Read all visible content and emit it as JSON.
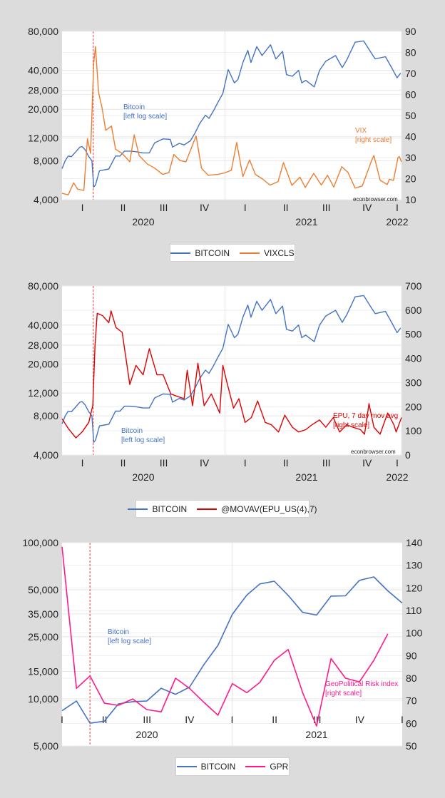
{
  "chart_data": [
    {
      "type": "line",
      "x_type": "date",
      "xlim": [
        "2020-01-01",
        "2022-02-01"
      ],
      "quarter_labels": [
        "I",
        "II",
        "III",
        "IV",
        "I",
        "II",
        "III",
        "IV",
        "I"
      ],
      "year_labels": [
        "2020",
        "2021",
        "2022"
      ],
      "left_axis": {
        "scale": "log",
        "ylim": [
          4000,
          80000
        ],
        "ticks": [
          80000,
          40000,
          28000,
          20000,
          12000,
          8000,
          4000
        ],
        "tick_labels": [
          "80,000",
          "40,000",
          "28,000",
          "20,000",
          "12,000",
          "8,000",
          "4,000"
        ]
      },
      "right_axis": {
        "scale": "linear",
        "ylim": [
          10,
          90
        ],
        "ticks": [
          10,
          20,
          30,
          40,
          50,
          60,
          70,
          80,
          90
        ],
        "tick_labels": [
          "10",
          "20",
          "30",
          "40",
          "50",
          "60",
          "70",
          "80",
          "90"
        ]
      },
      "marker_line_date": "2020-03-11",
      "grid": true,
      "legend_placement": "bottom",
      "annotations": {
        "btc_line1": "Bitcoin",
        "btc_line2": "[left log scale]",
        "other_line1": "VIX",
        "other_line2": "[right scale]",
        "source": "econbrowser.com"
      },
      "series": [
        {
          "name": "BITCOIN",
          "axis": "left",
          "color": "#4472c4",
          "x": [
            "2020-01-01",
            "2020-01-08",
            "2020-01-15",
            "2020-01-22",
            "2020-02-01",
            "2020-02-10",
            "2020-02-15",
            "2020-02-22",
            "2020-03-01",
            "2020-03-08",
            "2020-03-12",
            "2020-03-16",
            "2020-03-25",
            "2020-04-05",
            "2020-04-15",
            "2020-04-30",
            "2020-05-10",
            "2020-05-20",
            "2020-06-01",
            "2020-06-15",
            "2020-07-01",
            "2020-07-15",
            "2020-07-27",
            "2020-08-15",
            "2020-08-31",
            "2020-09-05",
            "2020-09-20",
            "2020-10-01",
            "2020-10-15",
            "2020-10-25",
            "2020-11-05",
            "2020-11-18",
            "2020-11-26",
            "2020-12-05",
            "2020-12-17",
            "2020-12-27",
            "2021-01-08",
            "2021-01-22",
            "2021-01-30",
            "2021-02-10",
            "2021-02-21",
            "2021-02-28",
            "2021-03-13",
            "2021-03-25",
            "2021-04-13",
            "2021-04-25",
            "2021-05-10",
            "2021-05-19",
            "2021-06-01",
            "2021-06-15",
            "2021-06-22",
            "2021-07-01",
            "2021-07-20",
            "2021-08-01",
            "2021-08-15",
            "2021-09-06",
            "2021-09-21",
            "2021-10-01",
            "2021-10-20",
            "2021-11-08",
            "2021-11-26",
            "2021-12-04",
            "2021-12-27",
            "2022-01-10",
            "2022-01-22",
            "2022-01-30"
          ],
          "values": [
            6950,
            8000,
            8700,
            8600,
            9400,
            10200,
            10300,
            9700,
            8600,
            8000,
            5000,
            5200,
            6700,
            6800,
            6900,
            8700,
            8700,
            9500,
            9500,
            9400,
            9200,
            9200,
            11000,
            11800,
            11700,
            10200,
            10900,
            10600,
            11400,
            13000,
            15500,
            18000,
            17000,
            19200,
            23000,
            26500,
            40500,
            32000,
            34000,
            46000,
            57000,
            46000,
            61000,
            52000,
            63000,
            49000,
            56000,
            37000,
            36000,
            40000,
            32000,
            33500,
            29800,
            40000,
            47000,
            52000,
            42000,
            48000,
            66000,
            67500,
            54000,
            49000,
            51000,
            41800,
            35000,
            38000
          ]
        },
        {
          "name": "VIXCLS",
          "axis": "right",
          "color": "#ed7d31",
          "x": [
            "2020-01-01",
            "2020-01-15",
            "2020-01-27",
            "2020-02-05",
            "2020-02-19",
            "2020-02-27",
            "2020-03-05",
            "2020-03-12",
            "2020-03-16",
            "2020-03-23",
            "2020-03-31",
            "2020-04-08",
            "2020-04-21",
            "2020-04-30",
            "2020-05-15",
            "2020-06-01",
            "2020-06-11",
            "2020-06-22",
            "2020-07-10",
            "2020-07-27",
            "2020-08-14",
            "2020-08-28",
            "2020-09-08",
            "2020-09-22",
            "2020-10-05",
            "2020-10-28",
            "2020-11-09",
            "2020-11-24",
            "2020-12-15",
            "2020-12-31",
            "2021-01-15",
            "2021-01-27",
            "2021-02-10",
            "2021-02-25",
            "2021-03-10",
            "2021-03-25",
            "2021-04-12",
            "2021-04-30",
            "2021-05-12",
            "2021-05-31",
            "2021-06-18",
            "2021-06-30",
            "2021-07-19",
            "2021-08-05",
            "2021-08-19",
            "2021-09-02",
            "2021-09-20",
            "2021-10-04",
            "2021-10-20",
            "2021-11-05",
            "2021-11-26",
            "2021-12-01",
            "2021-12-15",
            "2021-12-31",
            "2022-01-05",
            "2022-01-14",
            "2022-01-24",
            "2022-01-27",
            "2022-02-01"
          ],
          "values": [
            13,
            12.3,
            18,
            15,
            14.4,
            39,
            32,
            75,
            82.7,
            61,
            53.5,
            43,
            45,
            34,
            32,
            28,
            40.8,
            31,
            27,
            25,
            22,
            22.9,
            31.5,
            28.6,
            28,
            40.3,
            25,
            21.6,
            22,
            22.7,
            24,
            37.2,
            21,
            28.9,
            22,
            20,
            16.9,
            18.6,
            27.6,
            16.8,
            20.7,
            15.8,
            22.5,
            17,
            21.6,
            16,
            25.7,
            22.9,
            15.5,
            16.5,
            28.6,
            31,
            19.3,
            17.2,
            19.7,
            19.2,
            29.9,
            30.5,
            28
          ]
        }
      ]
    },
    {
      "type": "line",
      "x_type": "date",
      "xlim": [
        "2020-01-01",
        "2022-02-01"
      ],
      "quarter_labels": [
        "I",
        "II",
        "III",
        "IV",
        "I",
        "II",
        "III",
        "IV",
        "I"
      ],
      "year_labels": [
        "2020",
        "2021",
        "2022"
      ],
      "left_axis": {
        "scale": "log",
        "ylim": [
          4000,
          80000
        ],
        "ticks": [
          80000,
          40000,
          28000,
          20000,
          12000,
          8000,
          4000
        ],
        "tick_labels": [
          "80,000",
          "40,000",
          "28,000",
          "20,000",
          "12,000",
          "8,000",
          "4,000"
        ]
      },
      "right_axis": {
        "scale": "linear",
        "ylim": [
          0,
          700
        ],
        "ticks": [
          0,
          100,
          200,
          300,
          400,
          500,
          600,
          700
        ],
        "tick_labels": [
          "0",
          "100",
          "200",
          "300",
          "400",
          "500",
          "600",
          "700"
        ]
      },
      "marker_line_date": "2020-03-11",
      "grid": true,
      "legend_placement": "bottom",
      "annotations": {
        "btc_line1": "Bitcoin",
        "btc_line2": "[left log scale]",
        "other_line1": "EPU, 7 day mov avg",
        "other_line2": "[right scale]",
        "source": "econbrowser.com"
      },
      "series": [
        {
          "name": "BITCOIN",
          "axis": "left",
          "color": "#4472c4",
          "x": [
            "2020-01-01",
            "2020-01-08",
            "2020-01-15",
            "2020-01-22",
            "2020-02-01",
            "2020-02-10",
            "2020-02-15",
            "2020-02-22",
            "2020-03-01",
            "2020-03-08",
            "2020-03-12",
            "2020-03-16",
            "2020-03-25",
            "2020-04-05",
            "2020-04-15",
            "2020-04-30",
            "2020-05-10",
            "2020-05-20",
            "2020-06-01",
            "2020-06-15",
            "2020-07-01",
            "2020-07-15",
            "2020-07-27",
            "2020-08-15",
            "2020-08-31",
            "2020-09-05",
            "2020-09-20",
            "2020-10-01",
            "2020-10-15",
            "2020-10-25",
            "2020-11-05",
            "2020-11-18",
            "2020-11-26",
            "2020-12-05",
            "2020-12-17",
            "2020-12-27",
            "2021-01-08",
            "2021-01-22",
            "2021-01-30",
            "2021-02-10",
            "2021-02-21",
            "2021-02-28",
            "2021-03-13",
            "2021-03-25",
            "2021-04-13",
            "2021-04-25",
            "2021-05-10",
            "2021-05-19",
            "2021-06-01",
            "2021-06-15",
            "2021-06-22",
            "2021-07-01",
            "2021-07-20",
            "2021-08-01",
            "2021-08-15",
            "2021-09-06",
            "2021-09-21",
            "2021-10-01",
            "2021-10-20",
            "2021-11-08",
            "2021-11-26",
            "2021-12-04",
            "2021-12-27",
            "2022-01-10",
            "2022-01-22",
            "2022-01-30"
          ],
          "values": [
            6950,
            8000,
            8700,
            8600,
            9400,
            10200,
            10300,
            9700,
            8600,
            8000,
            5000,
            5200,
            6700,
            6800,
            6900,
            8700,
            8700,
            9500,
            9500,
            9400,
            9200,
            9200,
            11000,
            11800,
            11700,
            10200,
            10900,
            10600,
            11400,
            13000,
            15500,
            18000,
            17000,
            19200,
            23000,
            26500,
            40500,
            32000,
            34000,
            46000,
            57000,
            46000,
            61000,
            52000,
            63000,
            49000,
            56000,
            37000,
            36000,
            40000,
            32000,
            33500,
            29800,
            40000,
            47000,
            52000,
            42000,
            48000,
            66000,
            67500,
            54000,
            49000,
            51000,
            41800,
            35000,
            38000
          ]
        },
        {
          "name": "@MOVAV(EPU_US(4),7)",
          "axis": "right",
          "color": "#e00000",
          "x": [
            "2020-01-01",
            "2020-01-15",
            "2020-02-01",
            "2020-02-15",
            "2020-03-01",
            "2020-03-10",
            "2020-03-15",
            "2020-03-20",
            "2020-04-01",
            "2020-04-15",
            "2020-04-20",
            "2020-05-01",
            "2020-05-15",
            "2020-06-01",
            "2020-06-15",
            "2020-07-01",
            "2020-07-15",
            "2020-08-01",
            "2020-08-15",
            "2020-09-01",
            "2020-09-15",
            "2020-10-01",
            "2020-10-08",
            "2020-10-20",
            "2020-11-01",
            "2020-11-15",
            "2020-12-01",
            "2020-12-20",
            "2020-12-27",
            "2021-01-05",
            "2021-01-20",
            "2021-02-01",
            "2021-02-15",
            "2021-03-01",
            "2021-03-15",
            "2021-04-01",
            "2021-04-15",
            "2021-05-01",
            "2021-05-15",
            "2021-06-01",
            "2021-06-15",
            "2021-07-01",
            "2021-07-15",
            "2021-08-01",
            "2021-08-15",
            "2021-09-01",
            "2021-09-15",
            "2021-10-01",
            "2021-10-15",
            "2021-11-01",
            "2021-11-10",
            "2021-11-20",
            "2021-12-01",
            "2021-12-15",
            "2022-01-01",
            "2022-01-15",
            "2022-01-20",
            "2022-02-01"
          ],
          "values": [
            150,
            110,
            71,
            95,
            135,
            205,
            450,
            587,
            577,
            548,
            597,
            528,
            508,
            292,
            371,
            332,
            440,
            332,
            332,
            253,
            243,
            233,
            351,
            204,
            380,
            204,
            253,
            174,
            371,
            302,
            194,
            233,
            135,
            155,
            224,
            135,
            125,
            95,
            165,
            115,
            95,
            105,
            125,
            145,
            115,
            155,
            95,
            125,
            115,
            105,
            86,
            213,
            115,
            86,
            174,
            125,
            95,
            155
          ]
        }
      ]
    },
    {
      "type": "line",
      "x_type": "month",
      "xlim": [
        "2020-01",
        "2022-01"
      ],
      "quarter_labels": [
        "I",
        "II",
        "III",
        "IV",
        "I",
        "II",
        "III",
        "IV",
        "I"
      ],
      "year_labels": [
        "2020",
        "2021"
      ],
      "left_axis": {
        "scale": "log",
        "ylim": [
          5000,
          100000
        ],
        "ticks": [
          100000,
          50000,
          35000,
          25000,
          15000,
          10000,
          5000
        ],
        "tick_labels": [
          "100,000",
          "50,000",
          "35,000",
          "25,000",
          "15,000",
          "10,000",
          "5,000"
        ]
      },
      "right_axis": {
        "scale": "linear",
        "ylim": [
          50,
          140
        ],
        "ticks": [
          50,
          60,
          70,
          80,
          90,
          100,
          110,
          120,
          130,
          140
        ],
        "tick_labels": [
          "50",
          "60",
          "70",
          "80",
          "90",
          "100",
          "110",
          "120",
          "130",
          "140"
        ]
      },
      "marker_line_date": "2020-03",
      "grid": true,
      "legend_placement": "bottom",
      "annotations": {
        "btc_line1": "Bitcoin",
        "btc_line2": "[left log scale]",
        "other_line1": "GeoPolitical Risk index",
        "other_line2": "[right scale]"
      },
      "series": [
        {
          "name": "BITCOIN",
          "axis": "left",
          "color": "#4472c4",
          "x": [
            "2020-01",
            "2020-02",
            "2020-03",
            "2020-04",
            "2020-05",
            "2020-06",
            "2020-07",
            "2020-08",
            "2020-09",
            "2020-10",
            "2020-11",
            "2020-12",
            "2021-01",
            "2021-02",
            "2021-03",
            "2021-04",
            "2021-05",
            "2021-06",
            "2021-07",
            "2021-08",
            "2021-09",
            "2021-10",
            "2021-11",
            "2021-12",
            "2022-01"
          ],
          "values": [
            8400,
            9700,
            7000,
            7200,
            9300,
            9600,
            9700,
            11700,
            10700,
            11900,
            16600,
            22000,
            34800,
            46200,
            54400,
            56700,
            46000,
            35800,
            34400,
            45500,
            45700,
            57400,
            60400,
            49200,
            41100
          ]
        },
        {
          "name": "GPR",
          "axis": "right",
          "color": "#ff1a8c",
          "x": [
            "2020-01",
            "2020-02",
            "2020-03",
            "2020-04",
            "2020-05",
            "2020-06",
            "2020-07",
            "2020-08",
            "2020-09",
            "2020-10",
            "2020-11",
            "2020-12",
            "2021-01",
            "2021-02",
            "2021-03",
            "2021-04",
            "2021-05",
            "2021-06",
            "2021-07",
            "2021-08",
            "2021-09",
            "2021-10",
            "2021-11",
            "2021-12"
          ],
          "values": [
            138.2,
            75.5,
            81.0,
            68.9,
            68.0,
            70.8,
            66.1,
            65.1,
            80.0,
            75.5,
            69.3,
            63.6,
            77.6,
            73.6,
            78.1,
            87.9,
            92.7,
            73.6,
            58.8,
            88.7,
            80.0,
            78.4,
            87.9,
            99.6
          ]
        }
      ]
    }
  ],
  "legends": [
    {
      "items": [
        {
          "label": "BITCOIN",
          "color": "#4472c4"
        },
        {
          "label": "VIXCLS",
          "color": "#ed7d31"
        }
      ]
    },
    {
      "items": [
        {
          "label": "BITCOIN",
          "color": "#4472c4"
        },
        {
          "label": "@MOVAV(EPU_US(4),7)",
          "color": "#e00000"
        }
      ]
    },
    {
      "items": [
        {
          "label": "BITCOIN",
          "color": "#4472c4"
        },
        {
          "label": "GPR",
          "color": "#ff1a8c"
        }
      ]
    }
  ]
}
